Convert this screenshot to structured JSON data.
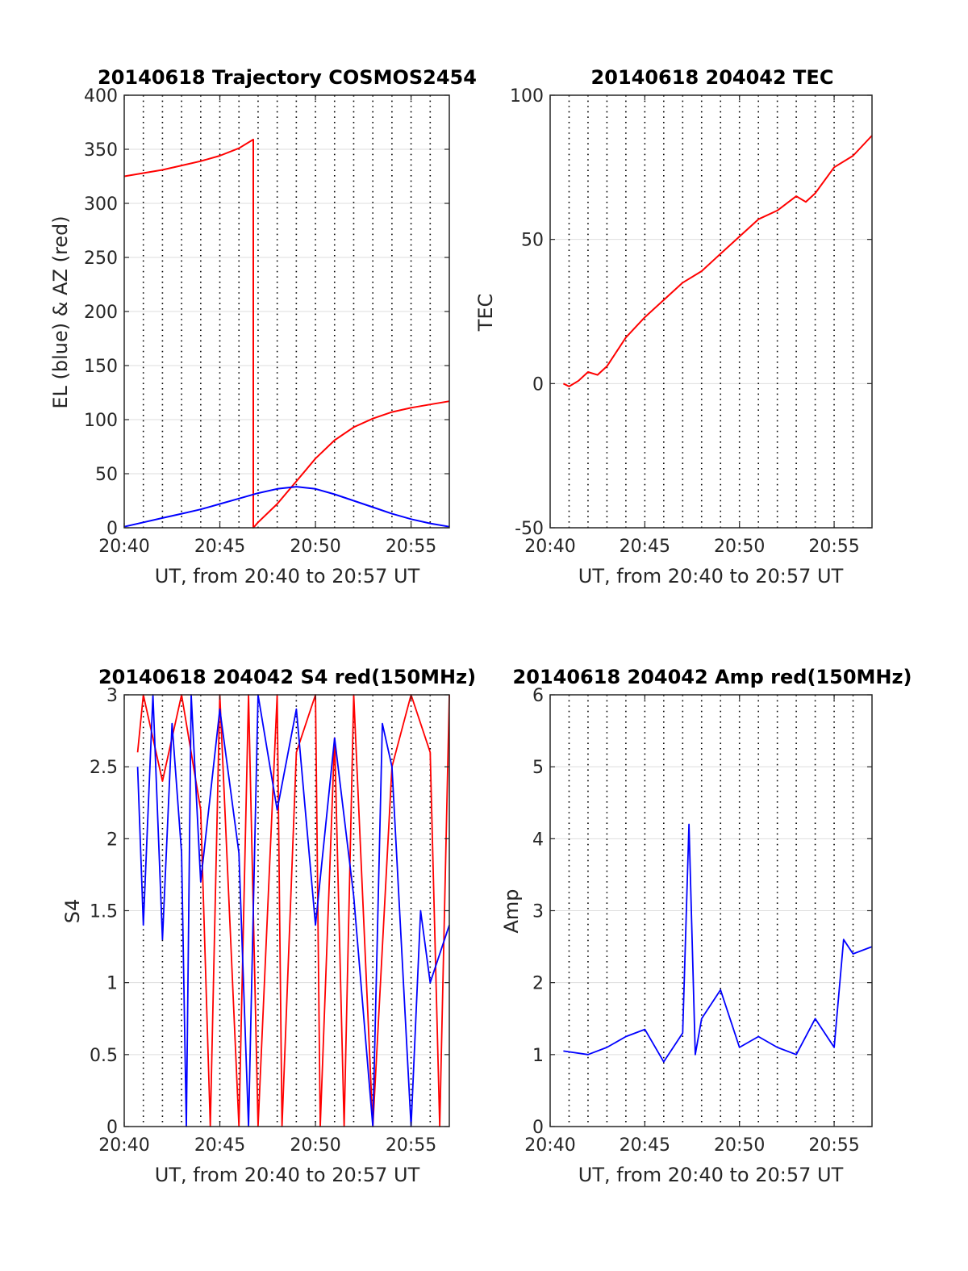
{
  "chart_data": [
    {
      "type": "line",
      "title": "20140618 Trajectory COSMOS2454",
      "xlabel": "UT, from 20:40 to 20:57 UT",
      "ylabel": "EL (blue) & AZ (red)",
      "xlim": [
        "20:40",
        "20:57"
      ],
      "ylim": [
        0,
        400
      ],
      "xticks": [
        "20:40",
        "20:45",
        "20:50",
        "20:55"
      ],
      "yticks": [
        0,
        50,
        100,
        150,
        200,
        250,
        300,
        350,
        400
      ],
      "grid": true,
      "series": [
        {
          "name": "AZ",
          "color": "#ff0000",
          "points": [
            [
              "20:40:00",
              325
            ],
            [
              "20:41:00",
              328
            ],
            [
              "20:42:00",
              331
            ],
            [
              "20:43:00",
              335
            ],
            [
              "20:44:00",
              339
            ],
            [
              "20:45:00",
              344
            ],
            [
              "20:46:00",
              351
            ],
            [
              "20:46:45",
              359
            ],
            [
              "20:46:45",
              0
            ],
            [
              "20:47:00",
              5
            ],
            [
              "20:48:00",
              22
            ],
            [
              "20:49:00",
              43
            ],
            [
              "20:50:00",
              64
            ],
            [
              "20:51:00",
              81
            ],
            [
              "20:52:00",
              93
            ],
            [
              "20:53:00",
              101
            ],
            [
              "20:54:00",
              107
            ],
            [
              "20:55:00",
              111
            ],
            [
              "20:56:00",
              114
            ],
            [
              "20:57:00",
              117
            ]
          ]
        },
        {
          "name": "EL",
          "color": "#0000ff",
          "points": [
            [
              "20:40:00",
              1
            ],
            [
              "20:41:00",
              5
            ],
            [
              "20:42:00",
              9
            ],
            [
              "20:43:00",
              13
            ],
            [
              "20:44:00",
              17
            ],
            [
              "20:45:00",
              22
            ],
            [
              "20:46:00",
              27
            ],
            [
              "20:47:00",
              32
            ],
            [
              "20:48:00",
              36
            ],
            [
              "20:49:00",
              38
            ],
            [
              "20:50:00",
              36
            ],
            [
              "20:51:00",
              31
            ],
            [
              "20:52:00",
              25
            ],
            [
              "20:53:00",
              19
            ],
            [
              "20:54:00",
              13
            ],
            [
              "20:55:00",
              8
            ],
            [
              "20:56:00",
              4
            ],
            [
              "20:57:00",
              1
            ]
          ]
        }
      ]
    },
    {
      "type": "line",
      "title": "20140618 204042 TEC",
      "xlabel": "UT, from 20:40 to 20:57 UT",
      "ylabel": "TEC",
      "xlim": [
        "20:40",
        "20:57"
      ],
      "ylim": [
        -50,
        100
      ],
      "xticks": [
        "20:40",
        "20:45",
        "20:50",
        "20:55"
      ],
      "yticks": [
        -50,
        0,
        50,
        100
      ],
      "grid": true,
      "series": [
        {
          "color": "#ff0000",
          "points": [
            [
              "20:40:42",
              0
            ],
            [
              "20:41:00",
              -1
            ],
            [
              "20:41:30",
              1
            ],
            [
              "20:42:00",
              4
            ],
            [
              "20:42:30",
              3
            ],
            [
              "20:43:00",
              6
            ],
            [
              "20:44:00",
              16
            ],
            [
              "20:45:00",
              23
            ],
            [
              "20:46:00",
              29
            ],
            [
              "20:47:00",
              35
            ],
            [
              "20:48:00",
              39
            ],
            [
              "20:49:00",
              45
            ],
            [
              "20:50:00",
              51
            ],
            [
              "20:51:00",
              57
            ],
            [
              "20:52:00",
              60
            ],
            [
              "20:53:00",
              65
            ],
            [
              "20:53:30",
              63
            ],
            [
              "20:54:00",
              66
            ],
            [
              "20:55:00",
              75
            ],
            [
              "20:56:00",
              79
            ],
            [
              "20:57:00",
              86
            ]
          ]
        }
      ]
    },
    {
      "type": "line",
      "title": "20140618 204042 S4 red(150MHz)",
      "xlabel": "UT, from 20:40 to 20:57 UT",
      "ylabel": "S4",
      "xlim": [
        "20:40",
        "20:57"
      ],
      "ylim": [
        0,
        3
      ],
      "xticks": [
        "20:40",
        "20:45",
        "20:50",
        "20:55"
      ],
      "yticks": [
        0,
        0.5,
        1,
        1.5,
        2,
        2.5,
        3
      ],
      "grid": true,
      "series": [
        {
          "color": "#ff0000",
          "points": [
            [
              "20:40:42",
              2.6
            ],
            [
              "20:41:00",
              3
            ],
            [
              "20:42:00",
              2.4
            ],
            [
              "20:43:00",
              3
            ],
            [
              "20:44:00",
              2.2
            ],
            [
              "20:44:30",
              0
            ],
            [
              "20:45:00",
              3
            ],
            [
              "20:46:00",
              0
            ],
            [
              "20:46:30",
              3
            ],
            [
              "20:47:00",
              0
            ],
            [
              "20:48:00",
              3
            ],
            [
              "20:48:15",
              0
            ],
            [
              "20:49:00",
              2.6
            ],
            [
              "20:50:00",
              3
            ],
            [
              "20:50:15",
              0
            ],
            [
              "20:51:00",
              2.7
            ],
            [
              "20:51:30",
              0
            ],
            [
              "20:52:00",
              3
            ],
            [
              "20:53:00",
              0
            ],
            [
              "20:54:00",
              2.5
            ],
            [
              "20:55:00",
              3
            ],
            [
              "20:56:00",
              2.6
            ],
            [
              "20:56:30",
              0
            ],
            [
              "20:57:00",
              3
            ]
          ]
        },
        {
          "color": "#0000ff",
          "points": [
            [
              "20:40:42",
              2.5
            ],
            [
              "20:41:00",
              1.4
            ],
            [
              "20:41:30",
              3
            ],
            [
              "20:42:00",
              1.3
            ],
            [
              "20:42:30",
              2.8
            ],
            [
              "20:43:00",
              1.9
            ],
            [
              "20:43:15",
              0
            ],
            [
              "20:43:30",
              3
            ],
            [
              "20:44:00",
              1.7
            ],
            [
              "20:45:00",
              2.9
            ],
            [
              "20:46:00",
              1.9
            ],
            [
              "20:46:30",
              0
            ],
            [
              "20:47:00",
              3
            ],
            [
              "20:48:00",
              2.2
            ],
            [
              "20:49:00",
              2.9
            ],
            [
              "20:50:00",
              1.4
            ],
            [
              "20:51:00",
              2.7
            ],
            [
              "20:52:00",
              1.6
            ],
            [
              "20:53:00",
              0
            ],
            [
              "20:53:30",
              2.8
            ],
            [
              "20:54:00",
              2.5
            ],
            [
              "20:55:00",
              0
            ],
            [
              "20:55:30",
              1.5
            ],
            [
              "20:56:00",
              1.0
            ],
            [
              "20:57:00",
              1.4
            ]
          ]
        }
      ]
    },
    {
      "type": "line",
      "title": "20140618 204042 Amp red(150MHz)",
      "xlabel": "UT, from 20:40 to 20:57 UT",
      "ylabel": "Amp",
      "xlim": [
        "20:40",
        "20:57"
      ],
      "ylim": [
        0,
        6
      ],
      "xticks": [
        "20:40",
        "20:45",
        "20:50",
        "20:55"
      ],
      "yticks": [
        0,
        1,
        2,
        3,
        4,
        5,
        6
      ],
      "grid": true,
      "series": [
        {
          "color": "#0000ff",
          "points": [
            [
              "20:40:42",
              1.05
            ],
            [
              "20:42:00",
              1.0
            ],
            [
              "20:43:00",
              1.1
            ],
            [
              "20:44:00",
              1.25
            ],
            [
              "20:45:00",
              1.35
            ],
            [
              "20:46:00",
              0.9
            ],
            [
              "20:47:00",
              1.3
            ],
            [
              "20:47:20",
              4.2
            ],
            [
              "20:47:40",
              1.0
            ],
            [
              "20:48:00",
              1.5
            ],
            [
              "20:49:00",
              1.9
            ],
            [
              "20:50:00",
              1.1
            ],
            [
              "20:51:00",
              1.25
            ],
            [
              "20:52:00",
              1.1
            ],
            [
              "20:53:00",
              1.0
            ],
            [
              "20:54:00",
              1.5
            ],
            [
              "20:55:00",
              1.1
            ],
            [
              "20:55:30",
              2.6
            ],
            [
              "20:56:00",
              2.4
            ],
            [
              "20:57:00",
              2.5
            ]
          ]
        }
      ]
    }
  ]
}
